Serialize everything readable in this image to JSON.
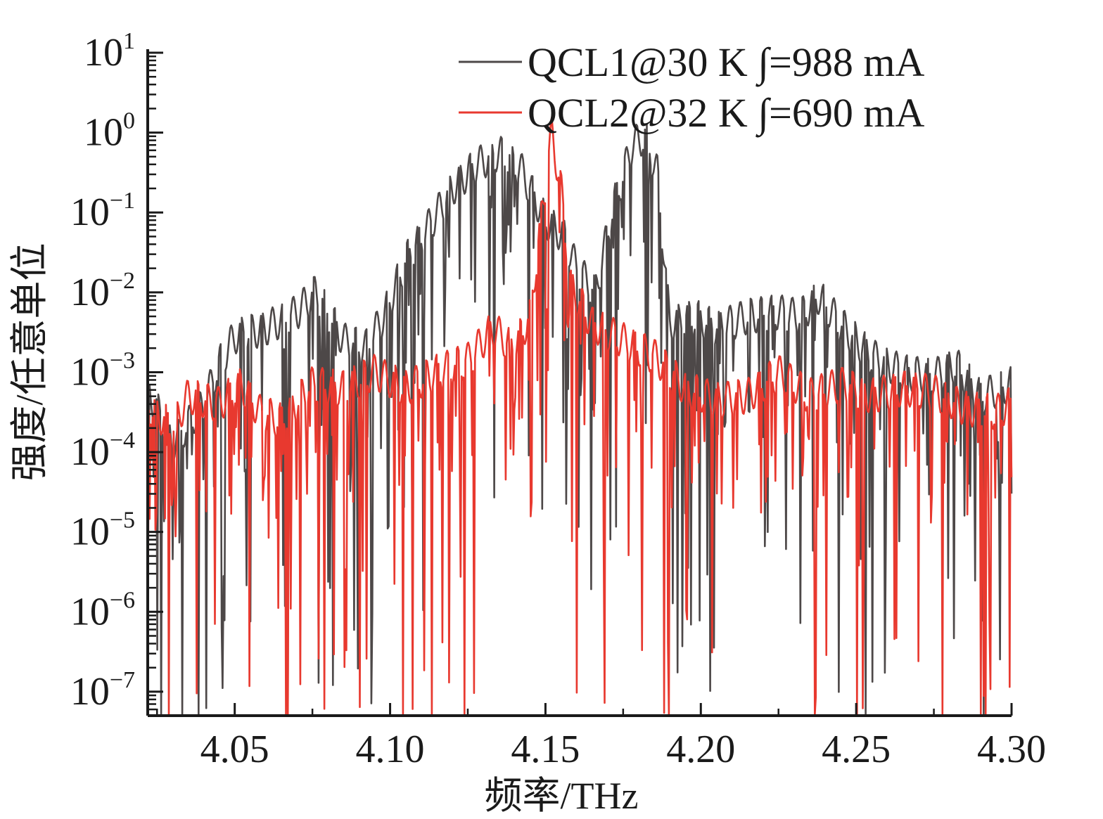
{
  "chart_data": {
    "type": "line",
    "xlabel": "频率/THz",
    "ylabel": "强度/任意单位",
    "xlim": [
      4.022,
      4.3
    ],
    "ylim_log10": [
      -7.3,
      1.0
    ],
    "log_scale_y": true,
    "grid": false,
    "legend_position": "top-right",
    "x_ticks": [
      "4.05",
      "4.10",
      "4.15",
      "4.20",
      "4.25",
      "4.30"
    ],
    "x_tick_values": [
      4.05,
      4.1,
      4.15,
      4.2,
      4.25,
      4.3
    ],
    "y_ticks": [
      {
        "base": "10",
        "exp": "1"
      },
      {
        "base": "10",
        "exp": "0"
      },
      {
        "base": "10",
        "exp": "−1"
      },
      {
        "base": "10",
        "exp": "−2"
      },
      {
        "base": "10",
        "exp": "−3"
      },
      {
        "base": "10",
        "exp": "−4"
      },
      {
        "base": "10",
        "exp": "−5"
      },
      {
        "base": "10",
        "exp": "−6"
      },
      {
        "base": "10",
        "exp": "−7"
      }
    ],
    "y_tick_exponents": [
      1,
      0,
      -1,
      -2,
      -3,
      -4,
      -5,
      -6,
      -7
    ],
    "series": [
      {
        "name": "QCL1@30 K ∫=988 mA",
        "color": "#4d4848",
        "envelope": [
          [
            4.022,
            -3.2
          ],
          [
            4.03,
            -3.9
          ],
          [
            4.04,
            -3.4
          ],
          [
            4.045,
            -2.9
          ],
          [
            4.05,
            -2.55
          ],
          [
            4.06,
            -2.45
          ],
          [
            4.07,
            -2.25
          ],
          [
            4.076,
            -2.0
          ],
          [
            4.085,
            -2.6
          ],
          [
            4.092,
            -2.7
          ],
          [
            4.098,
            -2.3
          ],
          [
            4.105,
            -1.6
          ],
          [
            4.112,
            -1.2
          ],
          [
            4.12,
            -0.7
          ],
          [
            4.128,
            -0.4
          ],
          [
            4.135,
            -0.25
          ],
          [
            4.142,
            -0.45
          ],
          [
            4.15,
            -1.1
          ],
          [
            4.156,
            -1.3
          ],
          [
            4.16,
            -1.7
          ],
          [
            4.166,
            -2.0
          ],
          [
            4.172,
            -0.9
          ],
          [
            4.178,
            -0.15
          ],
          [
            4.182,
            -0.05
          ],
          [
            4.186,
            -0.5
          ],
          [
            4.19,
            -2.4
          ],
          [
            4.198,
            -2.3
          ],
          [
            4.205,
            -2.45
          ],
          [
            4.215,
            -2.3
          ],
          [
            4.225,
            -2.25
          ],
          [
            4.232,
            -2.3
          ],
          [
            4.238,
            -2.05
          ],
          [
            4.245,
            -2.4
          ],
          [
            4.255,
            -2.8
          ],
          [
            4.265,
            -3.0
          ],
          [
            4.275,
            -3.05
          ],
          [
            4.282,
            -2.9
          ],
          [
            4.29,
            -3.3
          ],
          [
            4.3,
            -3.15
          ]
        ]
      },
      {
        "name": "QCL2@32 K ∫=690 mA",
        "color": "#e8392f",
        "envelope": [
          [
            4.022,
            -3.4
          ],
          [
            4.03,
            -3.7
          ],
          [
            4.035,
            -3.3
          ],
          [
            4.045,
            -3.4
          ],
          [
            4.052,
            -3.15
          ],
          [
            4.058,
            -3.5
          ],
          [
            4.065,
            -3.6
          ],
          [
            4.075,
            -3.15
          ],
          [
            4.085,
            -3.2
          ],
          [
            4.095,
            -3.0
          ],
          [
            4.105,
            -3.2
          ],
          [
            4.115,
            -3.0
          ],
          [
            4.125,
            -2.85
          ],
          [
            4.133,
            -2.45
          ],
          [
            4.14,
            -2.7
          ],
          [
            4.145,
            -2.3
          ],
          [
            4.148,
            -1.3
          ],
          [
            4.152,
            0.0
          ],
          [
            4.155,
            -0.7
          ],
          [
            4.158,
            -1.9
          ],
          [
            4.165,
            -2.4
          ],
          [
            4.175,
            -2.6
          ],
          [
            4.185,
            -2.8
          ],
          [
            4.195,
            -3.2
          ],
          [
            4.205,
            -3.35
          ],
          [
            4.215,
            -3.3
          ],
          [
            4.225,
            -3.0
          ],
          [
            4.235,
            -3.3
          ],
          [
            4.245,
            -3.15
          ],
          [
            4.255,
            -3.3
          ],
          [
            4.265,
            -3.2
          ],
          [
            4.275,
            -3.25
          ],
          [
            4.285,
            -3.45
          ],
          [
            4.295,
            -3.5
          ],
          [
            4.3,
            -3.4
          ]
        ]
      }
    ]
  }
}
